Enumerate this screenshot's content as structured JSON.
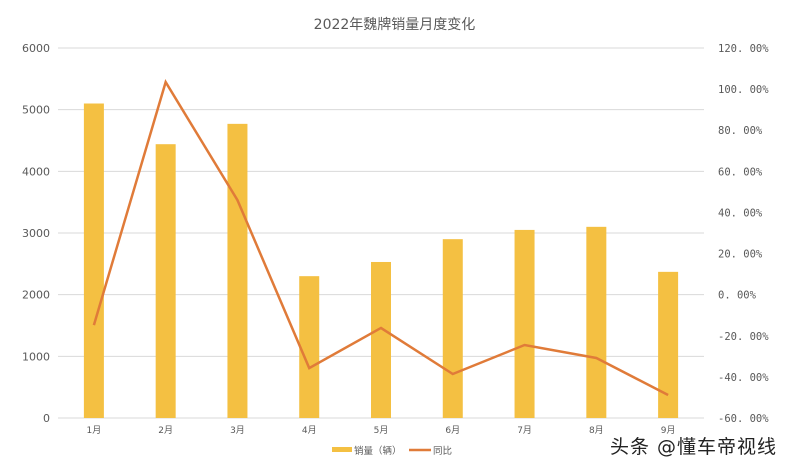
{
  "chart_data": {
    "type": "bar+line",
    "title": "2022年魏牌销量月度变化",
    "categories": [
      "1月",
      "2月",
      "3月",
      "4月",
      "5月",
      "6月",
      "7月",
      "8月",
      "9月"
    ],
    "series": [
      {
        "name": "销量（辆）",
        "type": "bar",
        "axis": "left",
        "color": "#F4C042",
        "values": [
          5100,
          4440,
          4770,
          2300,
          2530,
          2900,
          3050,
          3100,
          2370
        ]
      },
      {
        "name": "同比",
        "type": "line",
        "axis": "right",
        "color": "#E07B39",
        "values": [
          -14.8,
          103.4,
          46.0,
          -35.7,
          -16.2,
          -38.6,
          -24.5,
          -30.8,
          -48.8
        ]
      }
    ],
    "left_axis": {
      "min": 0,
      "max": 6000,
      "step": 1000,
      "ticks": [
        "0",
        "1000",
        "2000",
        "3000",
        "4000",
        "5000",
        "6000"
      ]
    },
    "right_axis": {
      "min": -60,
      "max": 120,
      "step": 20,
      "ticks": [
        "-60.00%",
        "-40.00%",
        "-20.00%",
        "0.00%",
        "20.00%",
        "40.00%",
        "60.00%",
        "80.00%",
        "100.00%",
        "120.00%"
      ]
    },
    "grid": true,
    "legend_position": "bottom"
  },
  "watermark": "头条 @懂车帝视线"
}
